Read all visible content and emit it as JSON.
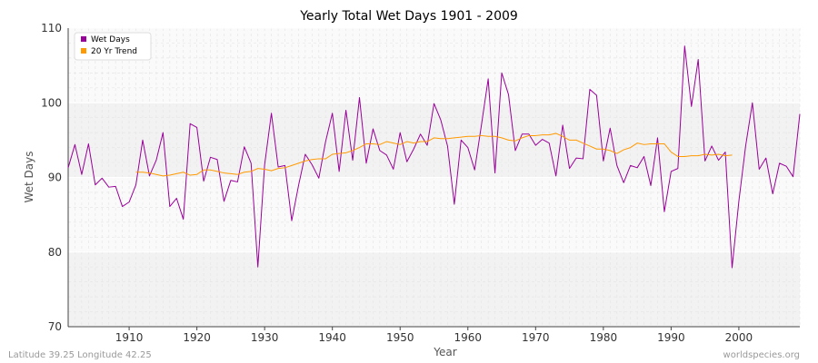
{
  "chart_data": {
    "type": "line",
    "title": "Yearly Total Wet Days 1901 - 2009",
    "xlabel": "Year",
    "ylabel": "Wet Days",
    "xlim": [
      1901,
      2009
    ],
    "ylim": [
      70,
      110
    ],
    "x_ticks": [
      1910,
      1920,
      1930,
      1940,
      1950,
      1960,
      1970,
      1980,
      1990,
      2000
    ],
    "y_ticks": [
      70,
      80,
      90,
      100,
      110
    ],
    "grid": true,
    "legend_position": "top-left",
    "series": [
      {
        "name": "Wet Days",
        "color": "#990099",
        "x_start": 1901,
        "values": [
          91.3,
          94.4,
          90.4,
          94.5,
          89.0,
          89.9,
          88.7,
          88.8,
          86.1,
          86.7,
          89.0,
          95.0,
          90.2,
          92.3,
          96.0,
          86.1,
          87.2,
          84.4,
          97.2,
          96.7,
          89.5,
          92.7,
          92.4,
          86.8,
          89.6,
          89.4,
          94.1,
          91.9,
          78.0,
          91.7,
          98.6,
          91.4,
          91.6,
          84.2,
          88.9,
          93.1,
          91.7,
          89.9,
          94.8,
          98.6,
          90.8,
          99.0,
          92.3,
          100.7,
          91.9,
          96.5,
          93.6,
          93.0,
          91.1,
          96.0,
          92.1,
          93.8,
          95.8,
          94.3,
          99.9,
          97.7,
          94.2,
          86.4,
          95.0,
          94.0,
          91.0,
          97.0,
          103.2,
          90.6,
          104.0,
          101.1,
          93.6,
          95.8,
          95.8,
          94.3,
          95.1,
          94.6,
          90.2,
          97.0,
          91.2,
          92.6,
          92.5,
          101.8,
          101.0,
          92.2,
          96.6,
          91.6,
          89.3,
          91.6,
          91.3,
          92.8,
          88.9,
          95.3,
          85.4,
          90.8,
          91.2,
          107.6,
          99.5,
          105.8,
          92.2,
          94.2,
          92.3,
          93.4,
          77.9,
          86.8,
          94.2,
          100.0,
          91.1,
          92.6,
          87.8,
          91.9,
          91.5,
          90.1,
          98.5
        ]
      },
      {
        "name": "20 Yr Trend",
        "color": "#ff9900",
        "x_start": 1911,
        "values": [
          90.7,
          90.7,
          90.6,
          90.4,
          90.2,
          90.3,
          90.5,
          90.7,
          90.3,
          90.4,
          91.0,
          91.0,
          90.8,
          90.6,
          90.5,
          90.4,
          90.7,
          90.8,
          91.2,
          91.1,
          90.9,
          91.2,
          91.3,
          91.6,
          91.9,
          92.2,
          92.4,
          92.5,
          92.5,
          93.1,
          93.2,
          93.3,
          93.6,
          94.0,
          94.5,
          94.5,
          94.4,
          94.8,
          94.6,
          94.4,
          94.8,
          94.6,
          94.8,
          94.8,
          95.3,
          95.2,
          95.2,
          95.3,
          95.4,
          95.5,
          95.5,
          95.6,
          95.5,
          95.5,
          95.3,
          95.0,
          94.9,
          95.3,
          95.6,
          95.6,
          95.7,
          95.7,
          95.9,
          95.5,
          95.0,
          95.0,
          94.6,
          94.2,
          93.8,
          93.8,
          93.6,
          93.2,
          93.7,
          94.0,
          94.6,
          94.4,
          94.5,
          94.5,
          94.5,
          93.4,
          92.8,
          92.8,
          92.9,
          92.9,
          93.1,
          93.0,
          93.1,
          92.9,
          93.0
        ]
      }
    ]
  },
  "footer": {
    "left": "Latitude 39.25 Longitude 42.25",
    "right": "worldspecies.org"
  }
}
